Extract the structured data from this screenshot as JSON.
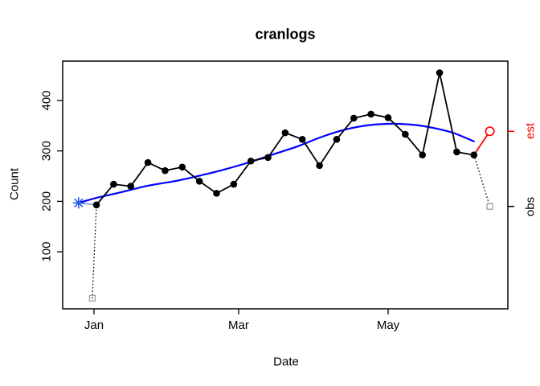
{
  "chart_data": {
    "type": "line",
    "title": "cranlogs",
    "xlabel": "Date",
    "ylabel": "Count",
    "x_ticks": [
      {
        "label": "Jan",
        "day": 0
      },
      {
        "label": "Mar",
        "day": 59
      },
      {
        "label": "May",
        "day": 120
      }
    ],
    "y_ticks": [
      100,
      200,
      300,
      400
    ],
    "xlim_days": [
      -13,
      169
    ],
    "ylim": [
      -13,
      478
    ],
    "grid": false,
    "colors": {
      "observed": "#000000",
      "smooth": "#0000FF",
      "asterisk": "#2B5CE6",
      "light_connector": "#8FA6EC",
      "est": "#FF0000",
      "square": "#A0A0A0"
    },
    "series": [
      {
        "name": "observed-weekly",
        "type": "points+line",
        "days": [
          1,
          8,
          15,
          22,
          29,
          36,
          43,
          50,
          57,
          64,
          71,
          78,
          85,
          92,
          99,
          106,
          113,
          120,
          127,
          134,
          141,
          148,
          155
        ],
        "values": [
          193,
          234,
          230,
          277,
          261,
          268,
          240,
          216,
          234,
          280,
          287,
          336,
          323,
          271,
          323,
          365,
          373,
          366,
          333,
          292,
          455,
          298,
          292
        ]
      },
      {
        "name": "smooth-loess",
        "type": "line",
        "days": [
          -6.3,
          1,
          11,
          22,
          34,
          44,
          53,
          63,
          73,
          83,
          93,
          103,
          112,
          122,
          132,
          140,
          147,
          155
        ],
        "values": [
          197,
          207,
          218,
          231,
          241,
          252,
          263,
          277,
          293,
          309,
          328,
          343,
          351,
          354,
          351,
          344,
          335,
          319
        ]
      }
    ],
    "markers": {
      "start_asterisk": {
        "day": -6.3,
        "value": 197,
        "shape": "asterisk"
      },
      "partial_obs_squares": [
        {
          "day": -0.7,
          "value": 8
        },
        {
          "day": 161.5,
          "value": 190
        }
      ],
      "est_point": {
        "day": 161.5,
        "value": 339,
        "shape": "open-circle"
      }
    },
    "connectors": {
      "light_blue_segment": {
        "from": {
          "day": -6.3,
          "value": 197
        },
        "to": {
          "day": 1,
          "value": 193
        }
      },
      "dotted_left": {
        "from": {
          "day": -0.7,
          "value": 8
        },
        "to": {
          "day": 1,
          "value": 193
        }
      },
      "dotted_right": {
        "from": {
          "day": 155,
          "value": 292
        },
        "to": {
          "day": 161.5,
          "value": 190
        }
      },
      "red_segment": {
        "from": {
          "day": 155,
          "value": 292
        },
        "to": {
          "day": 161.5,
          "value": 339
        }
      }
    },
    "right_margin_labels": [
      {
        "text": "est",
        "value": 339,
        "color": "#FF0000"
      },
      {
        "text": "obs",
        "value": 190,
        "color": "#000000"
      }
    ]
  }
}
